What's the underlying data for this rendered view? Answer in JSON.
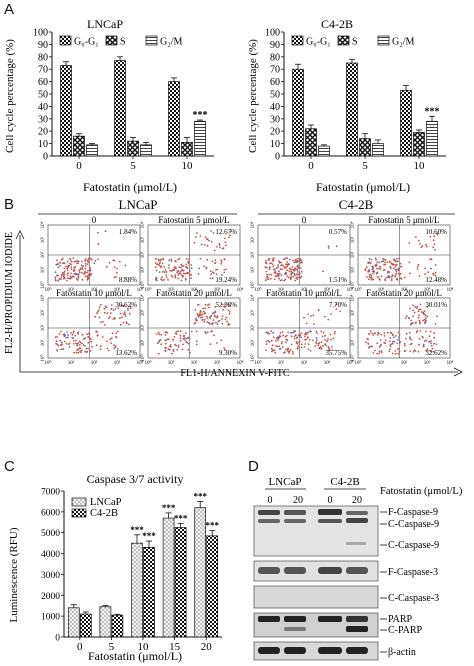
{
  "panel_a": {
    "letter": "A",
    "ylabel": "Cell cycle percentage (%)",
    "xlabel": "Fatostatin (μmol/L)",
    "legend": [
      "G₀-G₁",
      "S",
      "G₂/M"
    ]
  },
  "panel_b": {
    "letter": "B",
    "group_left": "LNCaP",
    "group_right": "C4-2B",
    "ylabel": "FL2-H/PROPIDIUM IODIDE",
    "xlabel": "FL1-H/ANNEXIN V-FITC",
    "plots": [
      {
        "label": "0",
        "ur": "1.84%",
        "lr": "8.88%"
      },
      {
        "label": "Fatostatin 5 μmol/L",
        "ur": "12.67%",
        "lr": "19.24%"
      },
      {
        "label": "0",
        "ur": "0.57%",
        "lr": "1.51%"
      },
      {
        "label": "Fatostatin 5 μmol/L",
        "ur": "10.60%",
        "lr": "12.48%"
      },
      {
        "label": "Fatostatin 10 μmol/L",
        "ur": "30.62%",
        "lr": "13.62%"
      },
      {
        "label": "Fatostatin 20 μmol/L",
        "ur": "52.88%",
        "lr": "9.30%"
      },
      {
        "label": "Fatostatin 10 μmol/L",
        "ur": "7.70%",
        "lr": "35.75%"
      },
      {
        "label": "Fatostatin 20 μmol/L",
        "ur": "30.01%",
        "lr": "32.62%"
      }
    ],
    "tick_labels": [
      "10⁰",
      "10¹",
      "10²",
      "10³",
      "10⁴"
    ]
  },
  "panel_c": {
    "letter": "C"
  },
  "panel_d": {
    "letter": "D",
    "group_left": "LNCaP",
    "group_right": "C4-2B",
    "treatment": "Fatostatin (μmol/L)",
    "lane_labels": [
      "0",
      "20",
      "0",
      "20"
    ],
    "bands": [
      {
        "labels": [
          "F-Caspase-9",
          "C-Caspase-9",
          "C-Caspase-9"
        ]
      },
      {
        "labels": [
          "F-Caspase-3"
        ]
      },
      {
        "labels": [
          "C-Caspase-3"
        ]
      },
      {
        "labels": [
          "PARP",
          "C-PARP"
        ]
      },
      {
        "labels": [
          "β-actin"
        ]
      }
    ]
  },
  "chart_data": [
    {
      "type": "bar",
      "title": "LNCaP",
      "xlabel": "Fatostatin (μmol/L)",
      "ylabel": "Cell cycle percentage (%)",
      "ylim": [
        0,
        100
      ],
      "yticks": [
        0,
        10,
        20,
        30,
        40,
        50,
        60,
        70,
        80,
        90,
        100
      ],
      "categories": [
        "0",
        "5",
        "10"
      ],
      "series": [
        {
          "name": "G₀-G₁",
          "values": [
            73,
            77,
            60
          ],
          "errors": [
            3,
            3,
            3
          ],
          "pattern": "check"
        },
        {
          "name": "S",
          "values": [
            16,
            12,
            11
          ],
          "errors": [
            2,
            3,
            4
          ],
          "pattern": "diamond"
        },
        {
          "name": "G₂/M",
          "values": [
            9,
            9,
            28
          ],
          "errors": [
            1,
            2,
            1
          ],
          "pattern": "hlines"
        }
      ],
      "annotations": [
        {
          "category": "10",
          "series": "G₂/M",
          "text": "***"
        }
      ]
    },
    {
      "type": "bar",
      "title": "C4-2B",
      "xlabel": "Fatostatin (μmol/L)",
      "ylabel": "Cell cycle percentage (%)",
      "ylim": [
        0,
        100
      ],
      "yticks": [
        0,
        10,
        20,
        30,
        40,
        50,
        60,
        70,
        80,
        90,
        100
      ],
      "categories": [
        "0",
        "5",
        "10"
      ],
      "series": [
        {
          "name": "G₀-G₁",
          "values": [
            70,
            75,
            53
          ],
          "errors": [
            4,
            3,
            4
          ],
          "pattern": "check"
        },
        {
          "name": "S",
          "values": [
            22,
            14,
            19
          ],
          "errors": [
            3,
            4,
            2
          ],
          "pattern": "diamond"
        },
        {
          "name": "G₂/M",
          "values": [
            8,
            10,
            28
          ],
          "errors": [
            1,
            3,
            4
          ],
          "pattern": "hlines"
        }
      ],
      "annotations": [
        {
          "category": "10",
          "series": "G₂/M",
          "text": "***"
        }
      ]
    },
    {
      "type": "bar",
      "title": "Caspase 3/7 activity",
      "xlabel": "Fatostatin (μmol/L)",
      "ylabel": "Luminescence (RFU)",
      "ylim": [
        0,
        7000
      ],
      "yticks": [
        0,
        1000,
        2000,
        3000,
        4000,
        5000,
        6000,
        7000
      ],
      "categories": [
        "0",
        "5",
        "10",
        "15",
        "20"
      ],
      "series": [
        {
          "name": "LNCaP",
          "values": [
            1400,
            1450,
            4500,
            5700,
            6200
          ],
          "errors": [
            150,
            60,
            400,
            250,
            300
          ],
          "pattern": "dots"
        },
        {
          "name": "C4-2B",
          "values": [
            1100,
            1050,
            4300,
            5250,
            4850
          ],
          "errors": [
            100,
            40,
            300,
            200,
            250
          ],
          "pattern": "check"
        }
      ],
      "annotations": [
        {
          "category": "10",
          "series": "LNCaP",
          "text": "***"
        },
        {
          "category": "10",
          "series": "C4-2B",
          "text": "***"
        },
        {
          "category": "15",
          "series": "LNCaP",
          "text": "***"
        },
        {
          "category": "15",
          "series": "C4-2B",
          "text": "***"
        },
        {
          "category": "20",
          "series": "LNCaP",
          "text": "***"
        },
        {
          "category": "20",
          "series": "C4-2B",
          "text": "***"
        }
      ]
    }
  ]
}
